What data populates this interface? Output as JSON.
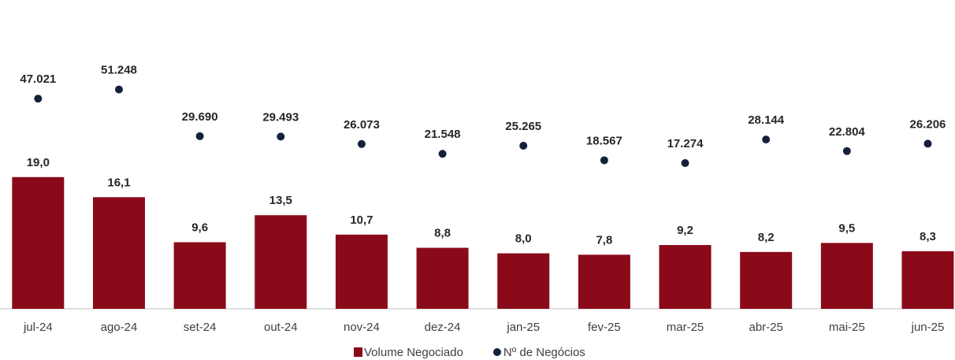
{
  "chart_data": {
    "type": "bar",
    "categories": [
      "jul-24",
      "ago-24",
      "set-24",
      "out-24",
      "nov-24",
      "dez-24",
      "jan-25",
      "fev-25",
      "mar-25",
      "abr-25",
      "mai-25",
      "jun-25"
    ],
    "series": [
      {
        "name": "Volume Negociado",
        "type": "bar",
        "color": "#8b0a19",
        "values": [
          19.0,
          16.1,
          9.6,
          13.5,
          10.7,
          8.8,
          8.0,
          7.8,
          9.2,
          8.2,
          9.5,
          8.3
        ],
        "value_labels": [
          "19,0",
          "16,1",
          "9,6",
          "13,5",
          "10,7",
          "8,8",
          "8,0",
          "7,8",
          "9,2",
          "8,2",
          "9,5",
          "8,3"
        ]
      },
      {
        "name": "Nº de Negócios",
        "type": "scatter",
        "axis": "y2",
        "color": "#14213d",
        "values": [
          47021,
          51248,
          29690,
          29493,
          26073,
          21548,
          25265,
          18567,
          17274,
          28144,
          22804,
          26206
        ],
        "value_labels": [
          "47.021",
          "51.248",
          "29.690",
          "29.493",
          "26.073",
          "21.548",
          "25.265",
          "18.567",
          "17.274",
          "28.144",
          "22.804",
          "26.206"
        ]
      }
    ],
    "ylim": [
      0,
      40
    ],
    "y2lim": [
      -50000,
      78000
    ],
    "legend": "bottom"
  }
}
